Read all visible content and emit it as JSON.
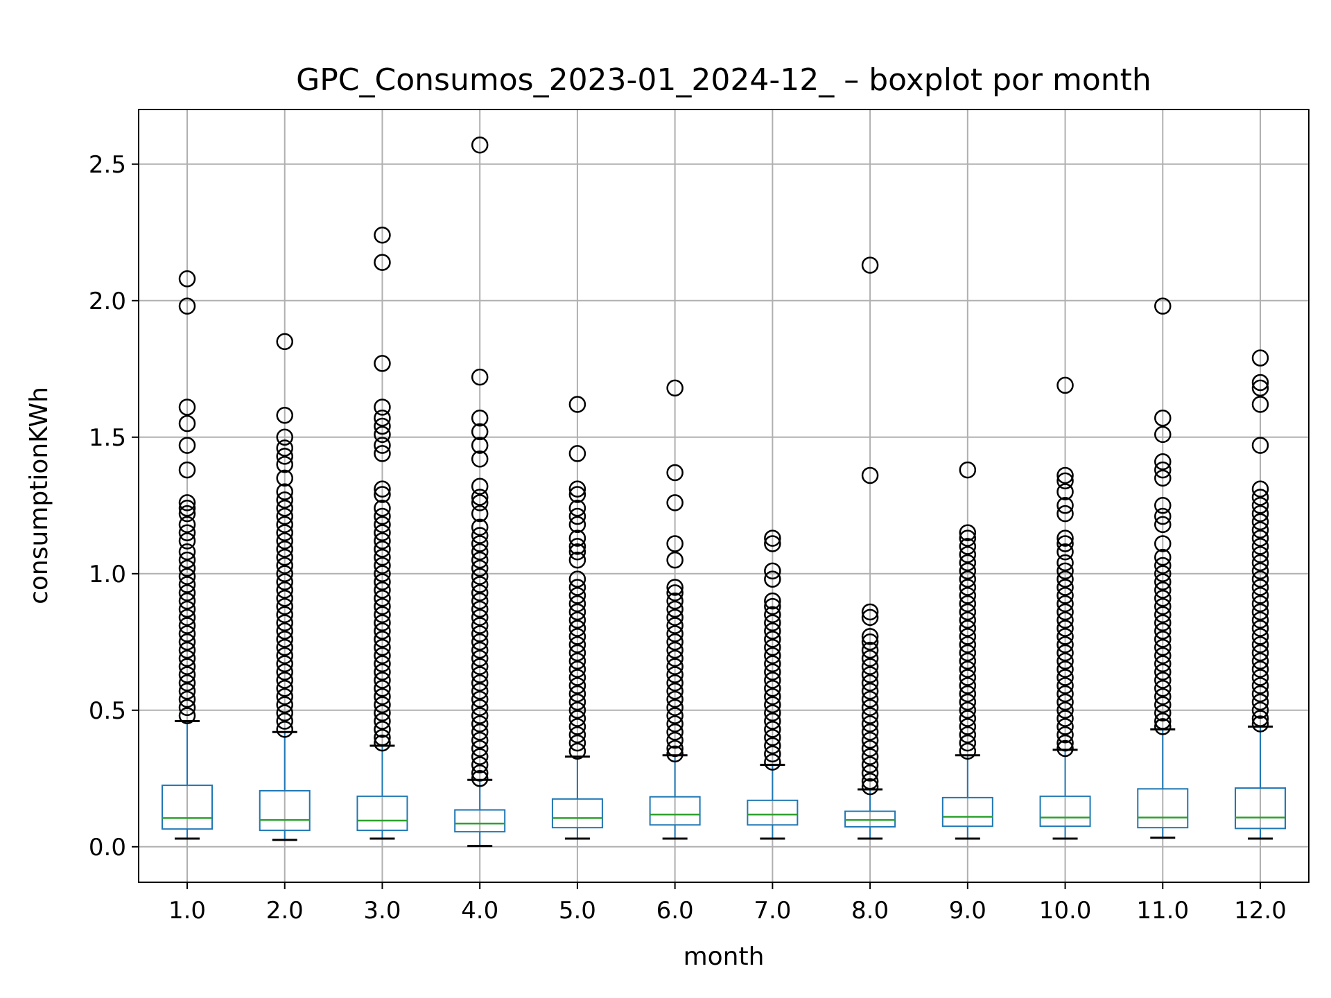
{
  "chart_data": {
    "type": "boxplot",
    "title": "GPC_Consumos_2023-01_2024-12_ – boxplot por month",
    "xlabel": "month",
    "ylabel": "consumptionKWh",
    "ylim": [
      -0.13,
      2.7
    ],
    "yticks": [
      "0.0",
      "0.5",
      "1.0",
      "1.5",
      "2.0",
      "2.5"
    ],
    "categories": [
      "1.0",
      "2.0",
      "3.0",
      "4.0",
      "5.0",
      "6.0",
      "7.0",
      "8.0",
      "9.0",
      "10.0",
      "11.0",
      "12.0"
    ],
    "grid": true,
    "colors": {
      "box": "#1f77b4",
      "median": "#2ca02c",
      "whisker_cap": "#000000",
      "flier": "#000000",
      "grid": "#b0b0b0"
    },
    "series": [
      {
        "category": "1.0",
        "whisker_low": 0.03,
        "q1": 0.065,
        "median": 0.105,
        "q3": 0.225,
        "whisker_high": 0.46,
        "outliers": [
          2.08,
          1.98,
          1.61,
          1.55,
          1.47,
          1.38,
          1.26,
          1.24,
          1.22,
          1.18,
          1.15,
          1.12,
          1.08,
          1.05,
          1.02,
          0.99,
          0.96,
          0.93,
          0.9,
          0.87,
          0.84,
          0.81,
          0.78,
          0.75,
          0.72,
          0.69,
          0.66,
          0.63,
          0.6,
          0.57,
          0.54,
          0.51,
          0.48
        ]
      },
      {
        "category": "2.0",
        "whisker_low": 0.025,
        "q1": 0.06,
        "median": 0.098,
        "q3": 0.205,
        "whisker_high": 0.42,
        "outliers": [
          1.85,
          1.58,
          1.5,
          1.46,
          1.43,
          1.4,
          1.35,
          1.3,
          1.27,
          1.24,
          1.21,
          1.18,
          1.15,
          1.12,
          1.09,
          1.06,
          1.03,
          1.0,
          0.97,
          0.94,
          0.91,
          0.88,
          0.85,
          0.82,
          0.79,
          0.76,
          0.73,
          0.7,
          0.67,
          0.64,
          0.61,
          0.58,
          0.55,
          0.52,
          0.49,
          0.46,
          0.43
        ]
      },
      {
        "category": "3.0",
        "whisker_low": 0.03,
        "q1": 0.06,
        "median": 0.096,
        "q3": 0.185,
        "whisker_high": 0.37,
        "outliers": [
          2.24,
          2.14,
          1.77,
          1.61,
          1.57,
          1.54,
          1.51,
          1.47,
          1.44,
          1.31,
          1.29,
          1.24,
          1.21,
          1.18,
          1.15,
          1.12,
          1.09,
          1.06,
          1.03,
          1.0,
          0.97,
          0.94,
          0.91,
          0.88,
          0.85,
          0.82,
          0.79,
          0.76,
          0.73,
          0.7,
          0.67,
          0.64,
          0.61,
          0.58,
          0.55,
          0.52,
          0.49,
          0.46,
          0.43,
          0.4,
          0.38
        ]
      },
      {
        "category": "4.0",
        "whisker_low": 0.003,
        "q1": 0.055,
        "median": 0.085,
        "q3": 0.135,
        "whisker_high": 0.245,
        "outliers": [
          2.57,
          1.72,
          1.57,
          1.52,
          1.47,
          1.42,
          1.32,
          1.28,
          1.26,
          1.22,
          1.17,
          1.14,
          1.11,
          1.08,
          1.05,
          1.02,
          0.99,
          0.96,
          0.93,
          0.9,
          0.87,
          0.84,
          0.81,
          0.78,
          0.75,
          0.72,
          0.69,
          0.66,
          0.63,
          0.6,
          0.57,
          0.54,
          0.51,
          0.48,
          0.45,
          0.42,
          0.39,
          0.36,
          0.33,
          0.3,
          0.27,
          0.25
        ]
      },
      {
        "category": "5.0",
        "whisker_low": 0.03,
        "q1": 0.07,
        "median": 0.105,
        "q3": 0.175,
        "whisker_high": 0.33,
        "outliers": [
          1.62,
          1.44,
          1.31,
          1.29,
          1.24,
          1.21,
          1.18,
          1.13,
          1.1,
          1.08,
          1.05,
          0.98,
          0.95,
          0.92,
          0.89,
          0.86,
          0.83,
          0.8,
          0.77,
          0.74,
          0.71,
          0.68,
          0.65,
          0.62,
          0.59,
          0.56,
          0.53,
          0.5,
          0.47,
          0.44,
          0.41,
          0.38,
          0.35
        ]
      },
      {
        "category": "6.0",
        "whisker_low": 0.03,
        "q1": 0.08,
        "median": 0.118,
        "q3": 0.183,
        "whisker_high": 0.335,
        "outliers": [
          1.68,
          1.37,
          1.26,
          1.11,
          1.05,
          0.95,
          0.93,
          0.9,
          0.87,
          0.84,
          0.81,
          0.78,
          0.75,
          0.72,
          0.69,
          0.66,
          0.63,
          0.6,
          0.57,
          0.54,
          0.51,
          0.48,
          0.45,
          0.42,
          0.39,
          0.36,
          0.34
        ]
      },
      {
        "category": "7.0",
        "whisker_low": 0.03,
        "q1": 0.08,
        "median": 0.118,
        "q3": 0.17,
        "whisker_high": 0.3,
        "outliers": [
          1.13,
          1.11,
          1.01,
          0.98,
          0.9,
          0.88,
          0.85,
          0.82,
          0.79,
          0.76,
          0.73,
          0.7,
          0.67,
          0.64,
          0.61,
          0.58,
          0.55,
          0.52,
          0.49,
          0.46,
          0.43,
          0.4,
          0.37,
          0.34,
          0.31
        ]
      },
      {
        "category": "8.0",
        "whisker_low": 0.03,
        "q1": 0.073,
        "median": 0.098,
        "q3": 0.13,
        "whisker_high": 0.21,
        "outliers": [
          2.13,
          1.36,
          0.86,
          0.84,
          0.77,
          0.75,
          0.72,
          0.69,
          0.66,
          0.63,
          0.6,
          0.57,
          0.54,
          0.51,
          0.48,
          0.45,
          0.42,
          0.39,
          0.36,
          0.33,
          0.3,
          0.27,
          0.24,
          0.22
        ]
      },
      {
        "category": "9.0",
        "whisker_low": 0.03,
        "q1": 0.075,
        "median": 0.11,
        "q3": 0.18,
        "whisker_high": 0.335,
        "outliers": [
          1.38,
          1.15,
          1.13,
          1.1,
          1.07,
          1.04,
          1.01,
          0.98,
          0.95,
          0.92,
          0.89,
          0.86,
          0.83,
          0.8,
          0.77,
          0.74,
          0.71,
          0.68,
          0.65,
          0.62,
          0.59,
          0.56,
          0.53,
          0.5,
          0.47,
          0.44,
          0.41,
          0.38,
          0.35
        ]
      },
      {
        "category": "10.0",
        "whisker_low": 0.03,
        "q1": 0.075,
        "median": 0.107,
        "q3": 0.185,
        "whisker_high": 0.355,
        "outliers": [
          1.69,
          1.36,
          1.34,
          1.3,
          1.25,
          1.22,
          1.13,
          1.11,
          1.08,
          1.04,
          1.01,
          0.98,
          0.95,
          0.92,
          0.89,
          0.86,
          0.83,
          0.8,
          0.77,
          0.74,
          0.71,
          0.68,
          0.65,
          0.62,
          0.59,
          0.56,
          0.53,
          0.5,
          0.47,
          0.44,
          0.41,
          0.38,
          0.36
        ]
      },
      {
        "category": "11.0",
        "whisker_low": 0.033,
        "q1": 0.07,
        "median": 0.107,
        "q3": 0.212,
        "whisker_high": 0.43,
        "outliers": [
          1.98,
          1.57,
          1.51,
          1.41,
          1.38,
          1.35,
          1.25,
          1.21,
          1.18,
          1.11,
          1.06,
          1.03,
          1.0,
          0.97,
          0.94,
          0.91,
          0.88,
          0.85,
          0.82,
          0.79,
          0.76,
          0.73,
          0.7,
          0.67,
          0.64,
          0.61,
          0.58,
          0.55,
          0.52,
          0.49,
          0.46,
          0.44
        ]
      },
      {
        "category": "12.0",
        "whisker_low": 0.03,
        "q1": 0.067,
        "median": 0.107,
        "q3": 0.215,
        "whisker_high": 0.44,
        "outliers": [
          1.79,
          1.7,
          1.68,
          1.62,
          1.47,
          1.31,
          1.28,
          1.25,
          1.22,
          1.19,
          1.16,
          1.13,
          1.1,
          1.07,
          1.04,
          1.01,
          0.98,
          0.95,
          0.92,
          0.89,
          0.86,
          0.83,
          0.8,
          0.77,
          0.74,
          0.71,
          0.68,
          0.65,
          0.62,
          0.59,
          0.56,
          0.53,
          0.5,
          0.47,
          0.45
        ]
      }
    ]
  }
}
